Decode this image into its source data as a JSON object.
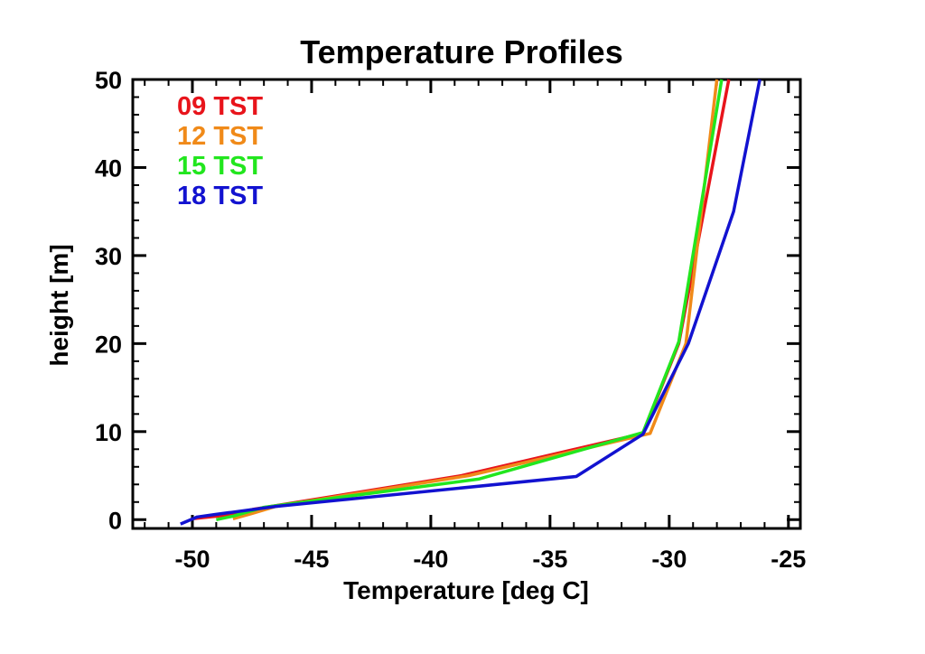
{
  "chart_data": {
    "type": "line",
    "title": "Temperature Profiles",
    "xlabel": "Temperature [deg C]",
    "ylabel": "height [m]",
    "xlim": [
      -52.5,
      -24.5
    ],
    "ylim": [
      -1,
      50
    ],
    "x_ticks": [
      -50,
      -45,
      -40,
      -35,
      -30,
      -25
    ],
    "x_tick_labels": [
      "-50",
      "-45",
      "-40",
      "-35",
      "-30",
      "-25"
    ],
    "y_ticks": [
      0,
      10,
      20,
      30,
      40,
      50
    ],
    "y_tick_labels": [
      "0",
      "10",
      "20",
      "30",
      "40",
      "50"
    ],
    "grid": false,
    "legend_position": "top-left",
    "series": [
      {
        "name": "09 TST",
        "color": "#e8141b",
        "points": [
          [
            -50.0,
            0.1
          ],
          [
            -48.6,
            0.5
          ],
          [
            -47.4,
            1.2
          ],
          [
            -38.7,
            5.0
          ],
          [
            -31.1,
            9.8
          ],
          [
            -29.6,
            20.0
          ],
          [
            -27.5,
            50.0
          ]
        ]
      },
      {
        "name": "12 TST",
        "color": "#f08a19",
        "points": [
          [
            -48.3,
            0.1
          ],
          [
            -47.5,
            0.7
          ],
          [
            -46.5,
            1.5
          ],
          [
            -38.4,
            5.0
          ],
          [
            -30.8,
            9.8
          ],
          [
            -29.3,
            20.0
          ],
          [
            -28.0,
            50.0
          ]
        ]
      },
      {
        "name": "15 TST",
        "color": "#22e61e",
        "points": [
          [
            -49.0,
            0.0
          ],
          [
            -48.3,
            0.4
          ],
          [
            -47.0,
            1.4
          ],
          [
            -38.0,
            4.6
          ],
          [
            -31.1,
            9.9
          ],
          [
            -29.6,
            20.2
          ],
          [
            -27.8,
            50.0
          ]
        ]
      },
      {
        "name": "18 TST",
        "color": "#1212d0",
        "points": [
          [
            -50.5,
            -0.5
          ],
          [
            -49.8,
            0.3
          ],
          [
            -49.0,
            0.6
          ],
          [
            -46.5,
            1.5
          ],
          [
            -33.9,
            4.9
          ],
          [
            -31.1,
            9.7
          ],
          [
            -29.2,
            20.0
          ],
          [
            -27.3,
            35.0
          ],
          [
            -26.2,
            50.0
          ]
        ]
      }
    ]
  }
}
